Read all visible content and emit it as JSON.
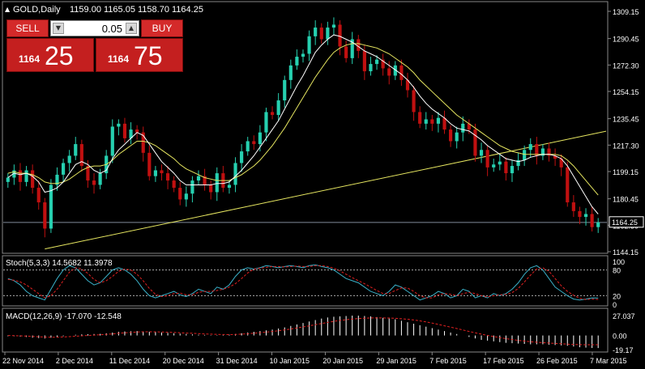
{
  "chart_header": {
    "symbol_timeframe": "GOLD,Daily",
    "ohlc": "1159.00 1165.05 1158.70 1164.25"
  },
  "trade_panel": {
    "sell_label": "SELL",
    "buy_label": "BUY",
    "lot_value": "0.05",
    "sell_price_small": "1164",
    "sell_price_big": "25",
    "buy_price_small": "1164",
    "buy_price_big": "75"
  },
  "colors": {
    "bull_candle": "#26d0b0",
    "bear_candle": "#c01010",
    "ma_fast": "#ffffff",
    "ma_slow": "#e6e660",
    "trendline": "#e6e660",
    "stoch_main": "#3ab0c8",
    "stoch_signal": "#e02020",
    "macd_hist": "#ffffff",
    "macd_signal": "#e02020",
    "grid": "#555555",
    "trade_red": "#d42a2a"
  },
  "chart_data": [
    {
      "type": "candlestick",
      "title": "GOLD,Daily",
      "y_ticks": [
        "1309.15",
        "1290.45",
        "1272.30",
        "1254.15",
        "1235.45",
        "1217.30",
        "1199.15",
        "1180.45",
        "1162.30",
        "1144.15"
      ],
      "x_ticks": [
        "22 Nov 2014",
        "2 Dec 2014",
        "11 Dec 2014",
        "20 Dec 2014",
        "31 Dec 2014",
        "10 Jan 2015",
        "20 Jan 2015",
        "29 Jan 2015",
        "7 Feb 2015",
        "17 Feb 2015",
        "26 Feb 2015",
        "7 Mar 2015"
      ],
      "ylim": [
        1144.15,
        1309.15
      ],
      "current_price": "1164.25",
      "closes": [
        1195,
        1200,
        1192,
        1200,
        1188,
        1178,
        1160,
        1190,
        1197,
        1205,
        1210,
        1218,
        1203,
        1193,
        1190,
        1198,
        1210,
        1230,
        1232,
        1222,
        1228,
        1226,
        1212,
        1196,
        1200,
        1198,
        1193,
        1188,
        1180,
        1184,
        1193,
        1196,
        1190,
        1185,
        1198,
        1188,
        1190,
        1205,
        1213,
        1220,
        1218,
        1226,
        1240,
        1238,
        1248,
        1262,
        1272,
        1278,
        1280,
        1292,
        1298,
        1290,
        1298,
        1300,
        1285,
        1277,
        1290,
        1282,
        1268,
        1273,
        1276,
        1270,
        1265,
        1272,
        1262,
        1255,
        1240,
        1232,
        1235,
        1232,
        1236,
        1228,
        1220,
        1226,
        1232,
        1228,
        1210,
        1214,
        1202,
        1204,
        1206,
        1198,
        1203,
        1207,
        1214,
        1218,
        1210,
        1215,
        1210,
        1208,
        1202,
        1178,
        1172,
        1168,
        1170,
        1161,
        1164.25
      ],
      "ma_fast": [
        1195,
        1198,
        1197,
        1198,
        1196,
        1192,
        1185,
        1186,
        1188,
        1192,
        1198,
        1204,
        1206,
        1204,
        1200,
        1198,
        1200,
        1208,
        1214,
        1218,
        1222,
        1226,
        1224,
        1218,
        1212,
        1206,
        1202,
        1198,
        1193,
        1190,
        1190,
        1190,
        1190,
        1190,
        1191,
        1191,
        1192,
        1196,
        1200,
        1205,
        1210,
        1216,
        1222,
        1228,
        1234,
        1242,
        1250,
        1258,
        1265,
        1273,
        1281,
        1286,
        1290,
        1293,
        1292,
        1290,
        1288,
        1285,
        1282,
        1280,
        1278,
        1275,
        1272,
        1269,
        1266,
        1262,
        1257,
        1251,
        1246,
        1242,
        1239,
        1236,
        1232,
        1229,
        1228,
        1227,
        1224,
        1221,
        1217,
        1214,
        1211,
        1208,
        1207,
        1206,
        1207,
        1209,
        1210,
        1211,
        1211,
        1210,
        1208,
        1203,
        1196,
        1189,
        1182,
        1175,
        1170
      ],
      "ma_slow": [
        1198,
        1199,
        1198,
        1198,
        1197,
        1195,
        1192,
        1191,
        1191,
        1192,
        1194,
        1197,
        1200,
        1202,
        1203,
        1203,
        1204,
        1207,
        1211,
        1214,
        1217,
        1220,
        1220,
        1219,
        1217,
        1214,
        1211,
        1208,
        1204,
        1201,
        1199,
        1197,
        1195,
        1194,
        1193,
        1193,
        1193,
        1195,
        1197,
        1200,
        1203,
        1207,
        1212,
        1217,
        1223,
        1229,
        1236,
        1243,
        1250,
        1257,
        1264,
        1270,
        1276,
        1281,
        1284,
        1286,
        1287,
        1287,
        1286,
        1285,
        1284,
        1282,
        1280,
        1277,
        1274,
        1271,
        1267,
        1262,
        1258,
        1254,
        1250,
        1246,
        1242,
        1238,
        1235,
        1232,
        1229,
        1226,
        1223,
        1220,
        1217,
        1215,
        1213,
        1212,
        1211,
        1211,
        1211,
        1211,
        1211,
        1211,
        1210,
        1207,
        1203,
        1198,
        1193,
        1188,
        1183
      ]
    },
    {
      "type": "line",
      "title": "Stoch(5,3,3) 14.5682 11.3978",
      "y_ticks": [
        "100",
        "80",
        "20",
        "0"
      ],
      "ylim": [
        0,
        100
      ],
      "series": [
        {
          "name": "Stoch(5,3,3)",
          "values": [
            60,
            55,
            45,
            30,
            20,
            15,
            10,
            35,
            60,
            80,
            90,
            85,
            70,
            55,
            45,
            50,
            65,
            80,
            85,
            80,
            70,
            55,
            35,
            20,
            15,
            20,
            25,
            30,
            22,
            18,
            25,
            35,
            30,
            25,
            40,
            35,
            45,
            65,
            80,
            85,
            82,
            85,
            90,
            88,
            85,
            88,
            90,
            88,
            85,
            90,
            92,
            88,
            85,
            80,
            70,
            60,
            55,
            50,
            40,
            30,
            25,
            20,
            30,
            45,
            40,
            30,
            20,
            10,
            15,
            20,
            30,
            25,
            15,
            20,
            35,
            30,
            15,
            20,
            15,
            25,
            20,
            25,
            35,
            50,
            70,
            85,
            90,
            80,
            60,
            40,
            30,
            20,
            12,
            10,
            12,
            15,
            14.5682
          ]
        },
        {
          "name": "Stoch signal",
          "values": [
            58,
            56,
            52,
            45,
            35,
            25,
            15,
            20,
            35,
            55,
            75,
            85,
            82,
            72,
            58,
            50,
            55,
            65,
            77,
            82,
            80,
            70,
            55,
            37,
            23,
            18,
            20,
            25,
            26,
            22,
            22,
            28,
            30,
            30,
            32,
            35,
            40,
            48,
            60,
            73,
            82,
            84,
            86,
            88,
            88,
            87,
            88,
            89,
            88,
            88,
            90,
            90,
            88,
            84,
            78,
            70,
            62,
            55,
            48,
            40,
            32,
            25,
            25,
            32,
            38,
            38,
            30,
            20,
            15,
            15,
            22,
            25,
            23,
            20,
            25,
            28,
            25,
            20,
            17,
            20,
            22,
            23,
            27,
            37,
            52,
            68,
            82,
            85,
            77,
            60,
            43,
            30,
            21,
            14,
            11,
            12,
            11.3978
          ]
        }
      ]
    },
    {
      "type": "bar",
      "title": "MACD(12,26,9) -17.070 -12.548",
      "y_ticks": [
        "27.037",
        "0.00",
        "-19.17"
      ],
      "ylim": [
        -19.17,
        27.037
      ],
      "series": [
        {
          "name": "MACD(12,26,9)",
          "values": [
            -1,
            -1,
            -1.5,
            -2,
            -3,
            -3.5,
            -4,
            -3,
            -2,
            -1,
            0,
            1,
            1.5,
            1.8,
            2,
            2.2,
            3,
            4,
            5,
            5.5,
            5.8,
            6,
            5.5,
            5,
            4.5,
            4,
            3.5,
            3,
            2.5,
            2,
            1.5,
            1,
            0.8,
            0.5,
            0.5,
            0.8,
            1,
            2,
            3,
            4,
            5,
            6,
            7,
            8,
            9.5,
            11,
            13,
            15,
            17,
            19,
            21,
            23,
            24.5,
            25.5,
            26,
            26.5,
            27,
            27,
            26.5,
            26,
            25,
            24,
            23,
            22,
            20,
            18,
            16,
            14,
            12,
            10,
            8,
            6,
            4,
            2,
            0,
            -2,
            -4,
            -6,
            -7,
            -8,
            -9,
            -10,
            -10.5,
            -11,
            -11.5,
            -12,
            -12,
            -12,
            -12.5,
            -13,
            -13.5,
            -14,
            -15,
            -16,
            -16.5,
            -17,
            -17.07
          ]
        },
        {
          "name": "Signal",
          "values": [
            0,
            -0.2,
            -0.5,
            -0.8,
            -1.2,
            -1.7,
            -2.2,
            -2.4,
            -2.3,
            -2,
            -1.6,
            -1,
            -0.5,
            0,
            0.5,
            1,
            1.5,
            2.2,
            3,
            3.6,
            4.2,
            4.7,
            5,
            5,
            4.9,
            4.7,
            4.4,
            4.1,
            3.7,
            3.3,
            2.9,
            2.5,
            2.1,
            1.8,
            1.5,
            1.3,
            1.2,
            1.4,
            1.8,
            2.3,
            3,
            3.8,
            4.6,
            5.5,
            6.5,
            7.6,
            8.8,
            10.2,
            11.6,
            13.1,
            14.7,
            16.3,
            17.8,
            19.2,
            20.4,
            21.4,
            22.3,
            23,
            23.5,
            23.8,
            23.9,
            23.9,
            23.7,
            23.4,
            22.8,
            22.1,
            21.1,
            19.9,
            18.5,
            16.9,
            15.1,
            13.2,
            11.3,
            9.4,
            7.4,
            5.5,
            3.6,
            1.8,
            0.1,
            -1.5,
            -2.9,
            -4.3,
            -5.5,
            -6.6,
            -7.6,
            -8.5,
            -9.2,
            -9.8,
            -10.3,
            -10.8,
            -11.3,
            -11.8,
            -12.2,
            -12.5,
            -12.6,
            -12.6,
            -12.548
          ]
        }
      ]
    }
  ]
}
